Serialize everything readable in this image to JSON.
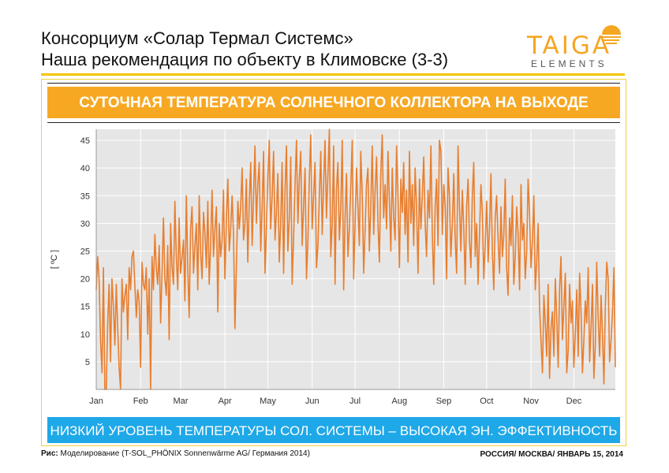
{
  "header": {
    "line1": "Консорциум «Солар Термал Системс»",
    "line2": "Наша рекомендация по объекту в Климовске (3-3)"
  },
  "logo": {
    "word": "TAIGA",
    "sub": "ELEMENTS"
  },
  "banner": {
    "text": "СУТОЧНАЯ ТЕМПЕРАТУРА СОЛНЕЧНОГО КОЛЛЕКТОРА НА ВЫХОДЕ"
  },
  "summary": {
    "text": "НИЗКИЙ УРОВЕНЬ ТЕМПЕРАТУРЫ СОЛ. СИСТЕМЫ – ВЫСОКАЯ ЭН. ЭФФЕКТИВНОСТЬ"
  },
  "footer": {
    "caption_label": "Рис:",
    "caption_text": " Моделирование (T-SOL_PHÖNIX Sonnenwärme AG/ Германия 2014)",
    "right": "РОССИЯ/ МОСКВА/ ЯНВАРЬ 15, 2014"
  },
  "colors": {
    "line": "#e87e2e",
    "plot_bg": "#e6e6e6",
    "banner": "#f7a823",
    "summary_bar": "#1ea8e8"
  },
  "chart_data": {
    "type": "line",
    "ylabel": "[ ºC ]",
    "ylim": [
      0,
      47
    ],
    "yticks": [
      5,
      10,
      15,
      20,
      25,
      30,
      35,
      40,
      45
    ],
    "xticks": [
      "Jan",
      "Feb",
      "Mar",
      "Apr",
      "May",
      "Jun",
      "Jul",
      "Aug",
      "Sep",
      "Oct",
      "Nov",
      "Dec"
    ],
    "grid": true,
    "series": [
      {
        "x_unit": "day of year",
        "values": [
          18,
          24,
          20,
          9,
          3,
          22,
          0,
          0,
          12,
          19,
          5,
          20,
          15,
          8,
          19,
          11,
          4,
          0,
          20,
          14,
          17,
          19,
          9,
          22,
          18,
          24,
          25,
          19,
          13,
          18,
          16,
          4,
          23,
          19,
          18,
          22,
          10,
          20,
          0,
          24,
          18,
          28,
          22,
          19,
          26,
          12,
          21,
          31,
          20,
          17,
          26,
          9,
          30,
          22,
          19,
          34,
          24,
          18,
          31,
          21,
          24,
          27,
          16,
          35,
          22,
          13,
          29,
          33,
          21,
          26,
          30,
          18,
          35,
          25,
          20,
          32,
          28,
          22,
          34,
          19,
          26,
          36,
          24,
          29,
          33,
          14,
          30,
          24,
          27,
          36,
          20,
          31,
          38,
          25,
          29,
          35,
          28,
          11,
          22,
          34,
          29,
          33,
          40,
          27,
          30,
          38,
          23,
          34,
          41,
          26,
          35,
          44,
          30,
          37,
          41,
          25,
          33,
          43,
          21,
          29,
          38,
          45,
          29,
          35,
          43,
          27,
          32,
          39,
          23,
          30,
          41,
          21,
          36,
          44,
          25,
          31,
          42,
          19,
          27,
          37,
          45,
          30,
          38,
          43,
          26,
          33,
          40,
          20,
          27,
          38,
          46,
          29,
          35,
          41,
          22,
          26,
          35,
          43,
          28,
          37,
          45,
          31,
          39,
          47,
          24,
          30,
          44,
          19,
          36,
          41,
          27,
          33,
          45,
          18,
          31,
          39,
          24,
          29,
          37,
          45,
          20,
          30,
          40,
          33,
          26,
          43,
          35,
          21,
          29,
          37,
          40,
          25,
          33,
          44,
          28,
          36,
          42,
          30,
          23,
          39,
          46,
          31,
          37,
          29,
          43,
          34,
          25,
          40,
          31,
          27,
          44,
          35,
          22,
          38,
          32,
          41,
          28,
          36,
          23,
          43,
          30,
          37,
          26,
          40,
          33,
          21,
          38,
          29,
          35,
          42,
          30,
          24,
          36,
          31,
          44,
          28,
          19,
          33,
          38,
          26,
          45,
          43,
          28,
          37,
          33,
          20,
          40,
          35,
          24,
          30,
          39,
          27,
          21,
          44,
          33,
          25,
          36,
          29,
          19,
          33,
          38,
          27,
          22,
          35,
          41,
          24,
          30,
          19,
          28,
          37,
          32,
          20,
          26,
          34,
          23,
          29,
          39,
          25,
          18,
          31,
          35,
          27,
          21,
          33,
          24,
          28,
          38,
          22,
          17,
          31,
          26,
          35,
          19,
          24,
          33,
          28,
          18,
          37,
          27,
          30,
          20,
          25,
          38,
          32,
          22,
          27,
          35,
          18,
          23,
          30,
          15,
          9,
          3,
          17,
          12,
          6,
          19,
          2,
          11,
          14,
          6,
          20,
          13,
          4,
          18,
          24,
          9,
          15,
          21,
          3,
          7,
          19,
          12,
          16,
          4,
          10,
          18,
          6,
          21,
          14,
          3,
          9,
          16,
          12,
          22,
          5,
          11,
          19,
          2,
          8,
          23,
          13,
          6,
          17,
          10,
          1,
          15,
          23,
          20,
          5,
          9,
          14,
          22,
          4
        ]
      }
    ],
    "annotations": []
  }
}
